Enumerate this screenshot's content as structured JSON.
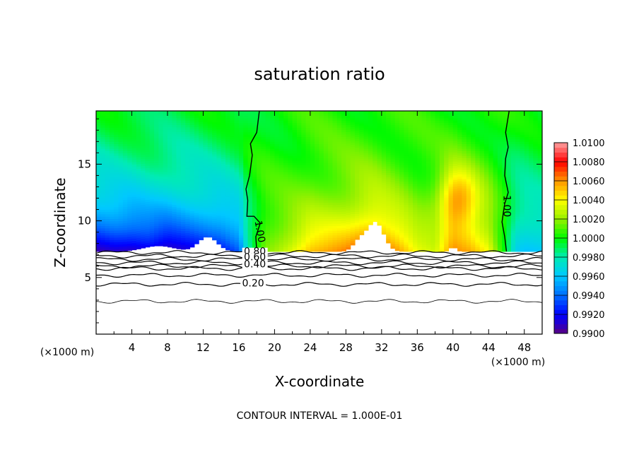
{
  "chart_data": {
    "type": "heatmap",
    "title": "saturation ratio",
    "xlabel": "X-coordinate",
    "ylabel": "Z-coordinate",
    "x_unit_left": "(×1000 m)",
    "x_unit_right": "(×1000 m)",
    "footer": "CONTOUR INTERVAL = 1.000E-01",
    "xlim": [
      0,
      50
    ],
    "ylim": [
      0,
      19.7
    ],
    "x_ticks": [
      4,
      8,
      12,
      16,
      20,
      24,
      28,
      32,
      36,
      40,
      44,
      48
    ],
    "y_ticks": [
      5,
      10,
      15
    ],
    "colorbar": {
      "range": [
        0.99,
        1.01
      ],
      "ticks": [
        "1.0100",
        "1.0080",
        "1.0060",
        "1.0040",
        "1.0020",
        "1.0000",
        "0.9980",
        "0.9960",
        "0.9940",
        "0.9920",
        "0.9900"
      ]
    },
    "fill_profile": {
      "description_units": "x in km, saturation ratio above cloud base",
      "x": [
        0,
        2,
        4,
        6,
        8,
        10,
        12,
        14,
        16,
        17,
        18,
        19,
        20,
        22,
        24,
        26,
        28,
        30,
        31,
        32,
        34,
        36,
        38,
        40,
        42,
        44,
        45,
        46,
        47,
        48,
        50
      ],
      "s_base": [
        0.9905,
        0.991,
        0.9908,
        0.9912,
        0.9905,
        0.991,
        0.9915,
        0.992,
        0.9935,
        0.9975,
        1.0,
        1.0018,
        1.0022,
        1.0035,
        1.0052,
        1.0058,
        1.0065,
        1.0078,
        1.008,
        1.0075,
        1.0058,
        1.0038,
        1.003,
        1.0062,
        1.0055,
        1.004,
        1.0015,
        0.9995,
        0.9965,
        0.9958,
        0.996
      ]
    },
    "cloud_base_height": 7.3,
    "contour_lines": [
      {
        "label": "1.00",
        "kind": "saturation-boundary-left"
      },
      {
        "label": "1.00",
        "kind": "saturation-boundary-right"
      },
      {
        "label": "0.80",
        "z": 6.9
      },
      {
        "label": "0.60",
        "z": 6.3
      },
      {
        "label": "0.40",
        "z": 5.8
      },
      {
        "label": "0.20",
        "z": 4.4
      },
      {
        "label": "",
        "z": 7.2
      },
      {
        "label": "",
        "z": 6.6
      },
      {
        "label": "",
        "z": 6.0
      },
      {
        "label": "",
        "z": 5.2
      },
      {
        "label": "",
        "z": 2.9
      }
    ],
    "grid": false,
    "legend": "colorbar-right"
  }
}
